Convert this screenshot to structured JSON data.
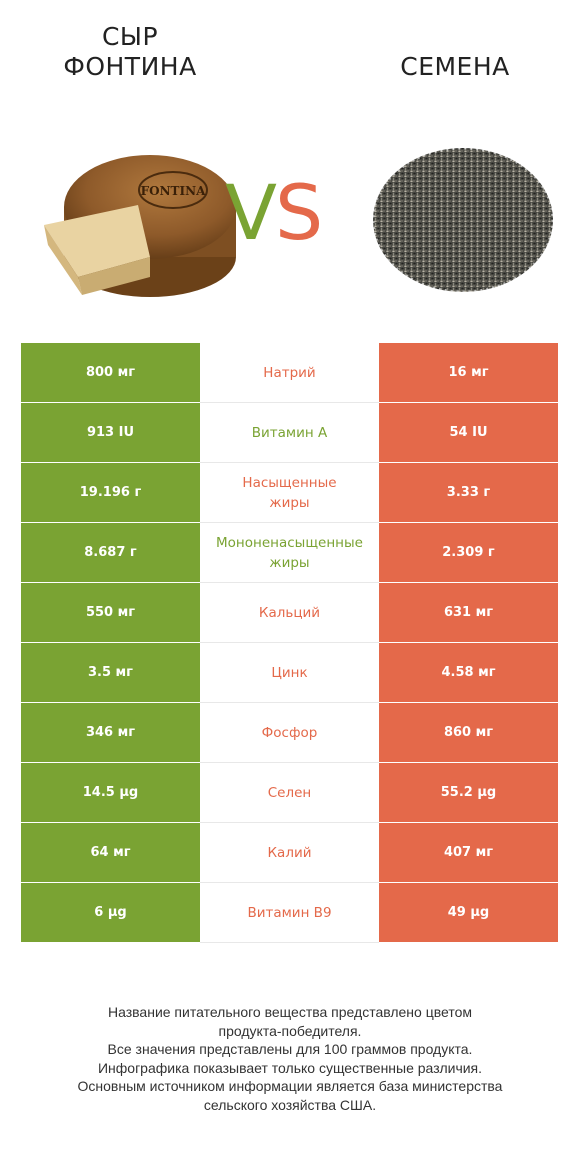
{
  "header": {
    "left_title": "СЫР ФОНТИНА",
    "right_title": "СЕМЕНА",
    "vs_v": "V",
    "vs_s": "S",
    "cheese_label": "FONTINA"
  },
  "colors": {
    "left_winner": "#7aa333",
    "right_winner": "#e4694a"
  },
  "rows": [
    {
      "left": "800 мг",
      "nutrient": "Натрий",
      "right": "16 мг",
      "winner": "right"
    },
    {
      "left": "913 IU",
      "nutrient": "Витамин A",
      "right": "54 IU",
      "winner": "left"
    },
    {
      "left": "19.196 г",
      "nutrient": "Насыщенные\nжиры",
      "right": "3.33 г",
      "winner": "right"
    },
    {
      "left": "8.687 г",
      "nutrient": "Мононенасыщенные\nжиры",
      "right": "2.309 г",
      "winner": "left"
    },
    {
      "left": "550 мг",
      "nutrient": "Кальций",
      "right": "631 мг",
      "winner": "right"
    },
    {
      "left": "3.5 мг",
      "nutrient": "Цинк",
      "right": "4.58 мг",
      "winner": "right"
    },
    {
      "left": "346 мг",
      "nutrient": "Фосфор",
      "right": "860 мг",
      "winner": "right"
    },
    {
      "left": "14.5 µg",
      "nutrient": "Селен",
      "right": "55.2 µg",
      "winner": "right"
    },
    {
      "left": "64 мг",
      "nutrient": "Калий",
      "right": "407 мг",
      "winner": "right"
    },
    {
      "left": "6 µg",
      "nutrient": "Витамин B9",
      "right": "49 µg",
      "winner": "right"
    }
  ],
  "footer": [
    "Название питательного вещества представлено цветом",
    "продукта-победителя.",
    "Все значения представлены для 100 граммов продукта.",
    "Инфографика показывает только существенные различия.",
    "Основным источником информации является база министерства",
    "сельского хозяйства США."
  ]
}
